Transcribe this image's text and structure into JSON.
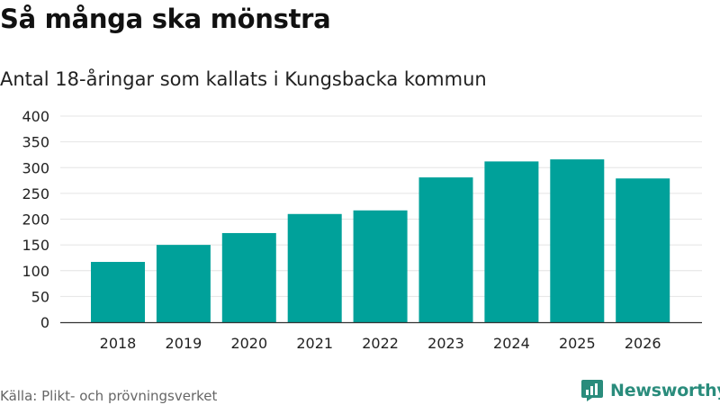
{
  "title": "Så många ska mönstra",
  "subtitle": "Antal 18-åringar som kallats i Kungsbacka kommun",
  "source": "Källa: Plikt- och prövningsverket",
  "brand": {
    "name": "Newsworthy",
    "icon": "newsworthy-logo-icon",
    "color": "#2a8c7c"
  },
  "colors": {
    "bar": "#00a19a",
    "grid": "#e4e4e4",
    "axis": "#333333"
  },
  "chart_data": {
    "type": "bar",
    "title": "Så många ska mönstra",
    "subtitle": "Antal 18-åringar som kallats i Kungsbacka kommun",
    "xlabel": "",
    "ylabel": "",
    "categories": [
      "2018",
      "2019",
      "2020",
      "2021",
      "2022",
      "2023",
      "2024",
      "2025",
      "2026"
    ],
    "values": [
      117,
      150,
      173,
      210,
      217,
      281,
      312,
      316,
      279
    ],
    "ylim": [
      0,
      400
    ],
    "yticks": [
      0,
      50,
      100,
      150,
      200,
      250,
      300,
      350,
      400
    ],
    "grid": true,
    "legend": "none"
  }
}
